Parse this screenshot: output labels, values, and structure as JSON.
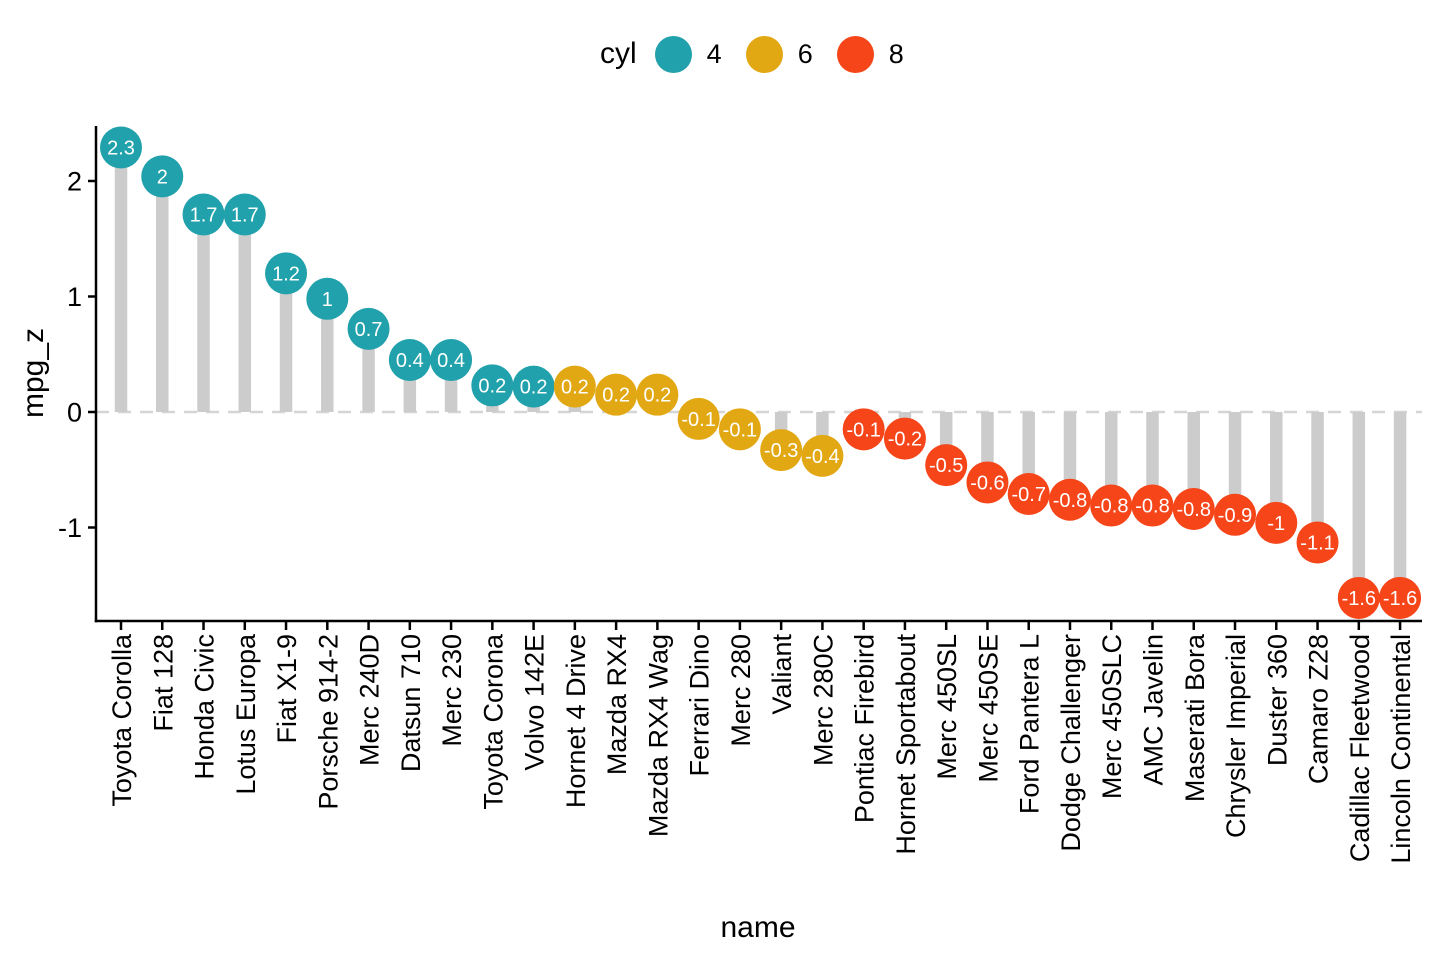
{
  "figure": {
    "background": "#FFFFFF",
    "legend": {
      "title": "cyl",
      "items": [
        {
          "label": "4",
          "color": "#21A1AB"
        },
        {
          "label": "6",
          "color": "#E2A813"
        },
        {
          "label": "8",
          "color": "#F54519"
        }
      ]
    },
    "y_axis_title": "mpg_z",
    "x_axis_title": "name"
  },
  "chart_data": {
    "type": "lollipop",
    "title": "",
    "xlabel": "name",
    "ylabel": "mpg_z",
    "legend_title": "cyl",
    "legend_position": "top",
    "grid": false,
    "ylim": [
      -1.75,
      2.45
    ],
    "y_ticks": [
      {
        "value": 2,
        "label": "2"
      },
      {
        "value": 1,
        "label": "1"
      },
      {
        "value": 0,
        "label": "0"
      },
      {
        "value": -1,
        "label": "-1"
      }
    ],
    "zero_line": {
      "y": 0,
      "style": "dashed",
      "color": "#D5D5D5"
    },
    "stick_color": "#CCCCCC",
    "axis_color": "#000000",
    "label_text_color": "#FFFFFF",
    "series_colors": {
      "4": "#21A1AB",
      "6": "#E2A813",
      "8": "#F54519"
    },
    "points": [
      {
        "name": "Toyota Corolla",
        "cyl": "4",
        "value": 2.29,
        "label": "2.3"
      },
      {
        "name": "Fiat 128",
        "cyl": "4",
        "value": 2.04,
        "label": "2"
      },
      {
        "name": "Honda Civic",
        "cyl": "4",
        "value": 1.71,
        "label": "1.7"
      },
      {
        "name": "Lotus Europa",
        "cyl": "4",
        "value": 1.71,
        "label": "1.7"
      },
      {
        "name": "Fiat X1-9",
        "cyl": "4",
        "value": 1.2,
        "label": "1.2"
      },
      {
        "name": "Porsche 914-2",
        "cyl": "4",
        "value": 0.98,
        "label": "1"
      },
      {
        "name": "Merc 240D",
        "cyl": "4",
        "value": 0.72,
        "label": "0.7"
      },
      {
        "name": "Datsun 710",
        "cyl": "4",
        "value": 0.45,
        "label": "0.4"
      },
      {
        "name": "Merc 230",
        "cyl": "4",
        "value": 0.45,
        "label": "0.4"
      },
      {
        "name": "Toyota Corona",
        "cyl": "4",
        "value": 0.23,
        "label": "0.2"
      },
      {
        "name": "Volvo 142E",
        "cyl": "4",
        "value": 0.22,
        "label": "0.2"
      },
      {
        "name": "Hornet 4 Drive",
        "cyl": "6",
        "value": 0.22,
        "label": "0.2"
      },
      {
        "name": "Mazda RX4",
        "cyl": "6",
        "value": 0.15,
        "label": "0.2"
      },
      {
        "name": "Mazda RX4 Wag",
        "cyl": "6",
        "value": 0.15,
        "label": "0.2"
      },
      {
        "name": "Ferrari Dino",
        "cyl": "6",
        "value": -0.06,
        "label": "-0.1"
      },
      {
        "name": "Merc 280",
        "cyl": "6",
        "value": -0.15,
        "label": "-0.1"
      },
      {
        "name": "Valiant",
        "cyl": "6",
        "value": -0.33,
        "label": "-0.3"
      },
      {
        "name": "Merc 280C",
        "cyl": "6",
        "value": -0.38,
        "label": "-0.4"
      },
      {
        "name": "Pontiac Firebird",
        "cyl": "8",
        "value": -0.15,
        "label": "-0.1"
      },
      {
        "name": "Hornet Sportabout",
        "cyl": "8",
        "value": -0.23,
        "label": "-0.2"
      },
      {
        "name": "Merc 450SL",
        "cyl": "8",
        "value": -0.46,
        "label": "-0.5"
      },
      {
        "name": "Merc 450SE",
        "cyl": "8",
        "value": -0.61,
        "label": "-0.6"
      },
      {
        "name": "Ford Pantera L",
        "cyl": "8",
        "value": -0.71,
        "label": "-0.7"
      },
      {
        "name": "Dodge Challenger",
        "cyl": "8",
        "value": -0.76,
        "label": "-0.8"
      },
      {
        "name": "Merc 450SLC",
        "cyl": "8",
        "value": -0.81,
        "label": "-0.8"
      },
      {
        "name": "AMC Javelin",
        "cyl": "8",
        "value": -0.81,
        "label": "-0.8"
      },
      {
        "name": "Maserati Bora",
        "cyl": "8",
        "value": -0.84,
        "label": "-0.8"
      },
      {
        "name": "Chrysler Imperial",
        "cyl": "8",
        "value": -0.89,
        "label": "-0.9"
      },
      {
        "name": "Duster 360",
        "cyl": "8",
        "value": -0.96,
        "label": "-1"
      },
      {
        "name": "Camaro Z28",
        "cyl": "8",
        "value": -1.13,
        "label": "-1.1"
      },
      {
        "name": "Cadillac Fleetwood",
        "cyl": "8",
        "value": -1.61,
        "label": "-1.6"
      },
      {
        "name": "Lincoln Continental",
        "cyl": "8",
        "value": -1.61,
        "label": "-1.6"
      }
    ]
  }
}
